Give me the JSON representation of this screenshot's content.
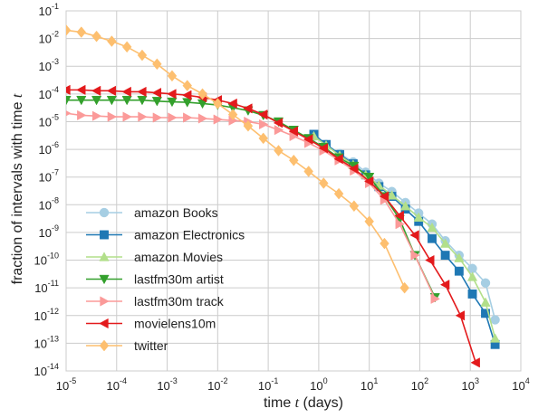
{
  "chart_data": {
    "type": "line",
    "x_scale": "log",
    "y_scale": "log",
    "xlim": [
      1e-05,
      10000.0
    ],
    "ylim": [
      1e-14,
      0.1
    ],
    "xlabel": "time t (days)",
    "ylabel": "fraction of intervals with time t",
    "grid": true,
    "legend_position": "lower-left",
    "x_ticks": [
      {
        "base": "10",
        "exp": "-5"
      },
      {
        "base": "10",
        "exp": "-4"
      },
      {
        "base": "10",
        "exp": "-3"
      },
      {
        "base": "10",
        "exp": "-2"
      },
      {
        "base": "10",
        "exp": "-1"
      },
      {
        "base": "10",
        "exp": "0"
      },
      {
        "base": "10",
        "exp": "1"
      },
      {
        "base": "10",
        "exp": "2"
      },
      {
        "base": "10",
        "exp": "3"
      },
      {
        "base": "10",
        "exp": "4"
      }
    ],
    "y_ticks": [
      {
        "base": "10",
        "exp": "-14"
      },
      {
        "base": "10",
        "exp": "-13"
      },
      {
        "base": "10",
        "exp": "-12"
      },
      {
        "base": "10",
        "exp": "-11"
      },
      {
        "base": "10",
        "exp": "-10"
      },
      {
        "base": "10",
        "exp": "-9"
      },
      {
        "base": "10",
        "exp": "-8"
      },
      {
        "base": "10",
        "exp": "-7"
      },
      {
        "base": "10",
        "exp": "-6"
      },
      {
        "base": "10",
        "exp": "-5"
      },
      {
        "base": "10",
        "exp": "-4"
      },
      {
        "base": "10",
        "exp": "-3"
      },
      {
        "base": "10",
        "exp": "-2"
      },
      {
        "base": "10",
        "exp": "-1"
      }
    ],
    "series": [
      {
        "name": "amazon Books",
        "color": "#a6cee3",
        "marker": "circle",
        "x": [
          0.8,
          1.4,
          2.6,
          4.8,
          8.5,
          15.5,
          28,
          52,
          95,
          175,
          320,
          600,
          1100,
          2000,
          3100
        ],
        "y": [
          3e-06,
          1.5e-06,
          7e-07,
          3.5e-07,
          1.5e-07,
          6e-08,
          3e-08,
          1.2e-08,
          5e-09,
          2e-09,
          5e-10,
          1.5e-10,
          5e-11,
          1.5e-11,
          7e-13
        ]
      },
      {
        "name": "amazon Electronics",
        "color": "#1f78b4",
        "marker": "square",
        "x": [
          0.8,
          1.4,
          2.6,
          4.8,
          8.5,
          15.5,
          28,
          52,
          95,
          175,
          320,
          600,
          1100,
          2000,
          3100
        ],
        "y": [
          3.5e-06,
          1.5e-06,
          6.5e-07,
          3e-07,
          1.2e-07,
          4.5e-08,
          2e-08,
          7e-09,
          2.5e-09,
          6e-10,
          1.5e-10,
          4e-11,
          6e-12,
          1.2e-12,
          9e-14
        ]
      },
      {
        "name": "amazon Movies",
        "color": "#b2df8a",
        "marker": "triangle-up",
        "x": [
          0.8,
          1.4,
          2.6,
          4.8,
          8.5,
          15.5,
          28,
          52,
          95,
          175,
          320,
          600,
          1100,
          2000,
          3100
        ],
        "y": [
          3e-06,
          1.4e-06,
          6e-07,
          2.8e-07,
          1.2e-07,
          5e-08,
          2.2e-08,
          9e-09,
          3.5e-09,
          1.5e-09,
          4e-10,
          1.2e-10,
          2.5e-11,
          3e-12,
          1.5e-13
        ]
      },
      {
        "name": "lastfm30m artist",
        "color": "#33a02c",
        "marker": "triangle-down",
        "x": [
          1e-05,
          2e-05,
          4e-05,
          8e-05,
          0.00016,
          0.00032,
          0.00063,
          0.00125,
          0.0025,
          0.005,
          0.01,
          0.02,
          0.04,
          0.08,
          0.16,
          0.32,
          0.63,
          1.25,
          2.5,
          5,
          10,
          20,
          40,
          80,
          200
        ],
        "y": [
          6e-05,
          6e-05,
          6e-05,
          6e-05,
          6e-05,
          6e-05,
          5.5e-05,
          5.2e-05,
          5e-05,
          4.5e-05,
          4e-05,
          3.2e-05,
          2.5e-05,
          1.7e-05,
          1e-05,
          5e-06,
          2.5e-06,
          1.2e-06,
          5e-07,
          2.5e-07,
          1e-07,
          2e-08,
          3e-09,
          1.5e-10,
          4.5e-12
        ]
      },
      {
        "name": "lastfm30m track",
        "color": "#fb9a99",
        "marker": "triangle-right",
        "x": [
          1e-05,
          2e-05,
          4e-05,
          8e-05,
          0.00016,
          0.00032,
          0.00063,
          0.00125,
          0.0025,
          0.005,
          0.01,
          0.02,
          0.04,
          0.08,
          0.16,
          0.32,
          0.63,
          1.25,
          2.5,
          5,
          10,
          20,
          40,
          80,
          200
        ],
        "y": [
          2e-05,
          1.7e-05,
          1.6e-05,
          1.5e-05,
          1.5e-05,
          1.5e-05,
          1.4e-05,
          1.4e-05,
          1.4e-05,
          1.3e-05,
          1.2e-05,
          1.1e-05,
          1e-05,
          8e-06,
          5e-06,
          3e-06,
          1.7e-06,
          9e-07,
          4e-07,
          1.7e-07,
          6e-08,
          1.5e-08,
          2e-09,
          1.5e-10,
          4e-12
        ]
      },
      {
        "name": "movielens10m",
        "color": "#e31a1c",
        "marker": "triangle-left",
        "x": [
          1e-05,
          2e-05,
          4e-05,
          8e-05,
          0.00016,
          0.00032,
          0.00063,
          0.00125,
          0.0025,
          0.005,
          0.01,
          0.02,
          0.04,
          0.08,
          0.16,
          0.32,
          0.63,
          1.25,
          2.5,
          5,
          10,
          20,
          40,
          80,
          160,
          320,
          640,
          1280
        ],
        "y": [
          0.00014,
          0.00014,
          0.00013,
          0.00013,
          0.00012,
          0.00012,
          0.00011,
          0.0001,
          9e-05,
          7.5e-05,
          6e-05,
          4.5e-05,
          3e-05,
          1.8e-05,
          9e-06,
          4.5e-06,
          2.3e-06,
          1.1e-06,
          4.5e-07,
          2e-07,
          7e-08,
          2e-08,
          4e-09,
          8e-10,
          1e-10,
          1.3e-11,
          1e-12,
          2e-14
        ]
      },
      {
        "name": "twitter",
        "color": "#fdbf6f",
        "marker": "diamond",
        "x": [
          1e-05,
          2e-05,
          4e-05,
          8e-05,
          0.00016,
          0.00032,
          0.00063,
          0.00125,
          0.0025,
          0.005,
          0.01,
          0.02,
          0.04,
          0.08,
          0.16,
          0.32,
          0.63,
          1.25,
          2.5,
          5,
          10,
          20,
          50
        ],
        "y": [
          0.02,
          0.017,
          0.012,
          0.008,
          0.005,
          0.0025,
          0.0012,
          0.00045,
          0.0002,
          0.0001,
          4.5e-05,
          1.8e-05,
          7e-06,
          2.5e-06,
          9e-07,
          4e-07,
          1.6e-07,
          6e-08,
          2.5e-08,
          9e-09,
          2.5e-09,
          4e-10,
          1e-11
        ]
      }
    ]
  }
}
